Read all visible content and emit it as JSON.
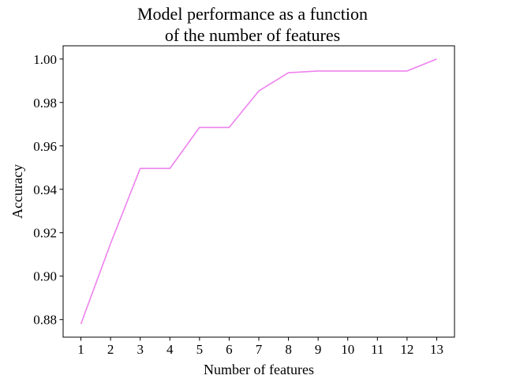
{
  "chart_data": {
    "type": "line",
    "title": [
      "Model performance as a function",
      "of the number of features"
    ],
    "xlabel": "Number of features",
    "ylabel": "Accuracy",
    "x": [
      1,
      2,
      3,
      4,
      5,
      6,
      7,
      8,
      9,
      10,
      11,
      12,
      13
    ],
    "series": [
      {
        "values": [
          0.878,
          0.915,
          0.9496,
          0.9496,
          0.9685,
          0.9685,
          0.9853,
          0.9937,
          0.9945,
          0.9945,
          0.9945,
          0.9945,
          1.0
        ],
        "color": "#ee82ee"
      }
    ],
    "xticks": [
      "1",
      "2",
      "3",
      "4",
      "5",
      "6",
      "7",
      "8",
      "9",
      "10",
      "11",
      "12",
      "13"
    ],
    "yticks": [
      "0.88",
      "0.90",
      "0.92",
      "0.94",
      "0.96",
      "0.98",
      "1.00"
    ],
    "ytick_values": [
      0.88,
      0.9,
      0.92,
      0.94,
      0.96,
      0.98,
      1.0
    ],
    "xlim": [
      0.4,
      13.6
    ],
    "ylim": [
      0.8719,
      1.0061
    ],
    "grid": false,
    "legend": "none"
  }
}
